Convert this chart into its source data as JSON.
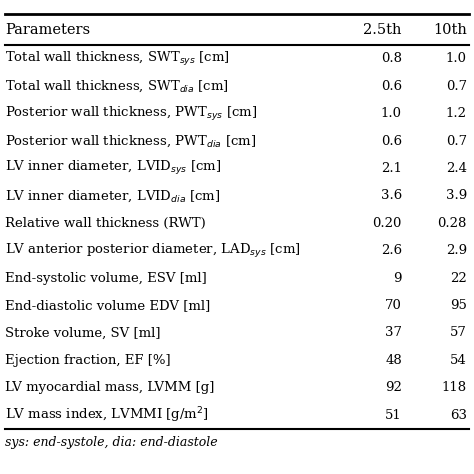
{
  "header": [
    "Parameters",
    "2.5th",
    "10th"
  ],
  "rows": [
    [
      "Total wall thickness, SWT$_{sys}$ [cm]",
      "0.8",
      "1.0"
    ],
    [
      "Total wall thickness, SWT$_{dia}$ [cm]",
      "0.6",
      "0.7"
    ],
    [
      "Posterior wall thickness, PWT$_{sys}$ [cm]",
      "1.0",
      "1.2"
    ],
    [
      "Posterior wall thickness, PWT$_{dia}$ [cm]",
      "0.6",
      "0.7"
    ],
    [
      "LV inner diameter, LVID$_{sys}$ [cm]",
      "2.1",
      "2.4"
    ],
    [
      "LV inner diameter, LVID$_{dia}$ [cm]",
      "3.6",
      "3.9"
    ],
    [
      "Relative wall thickness (RWT)",
      "0.20",
      "0.28"
    ],
    [
      "LV anterior posterior diameter, LAD$_{sys}$ [cm]",
      "2.6",
      "2.9"
    ],
    [
      "End-systolic volume, ESV [ml]",
      "9",
      "22"
    ],
    [
      "End-diastolic volume EDV [ml]",
      "70",
      "95"
    ],
    [
      "Stroke volume, SV [ml]",
      "37",
      "57"
    ],
    [
      "Ejection fraction, EF [%]",
      "48",
      "54"
    ],
    [
      "LV myocardial mass, LVMM [g]",
      "92",
      "118"
    ],
    [
      "LV mass index, LVMMI [g/m$^{2}$]",
      "51",
      "63"
    ]
  ],
  "footer": "sys: end-systole, dia: end-diastole",
  "bg_color": "#ffffff",
  "header_line_color": "#000000",
  "text_color": "#000000",
  "font_size": 9.5,
  "header_font_size": 10.5
}
